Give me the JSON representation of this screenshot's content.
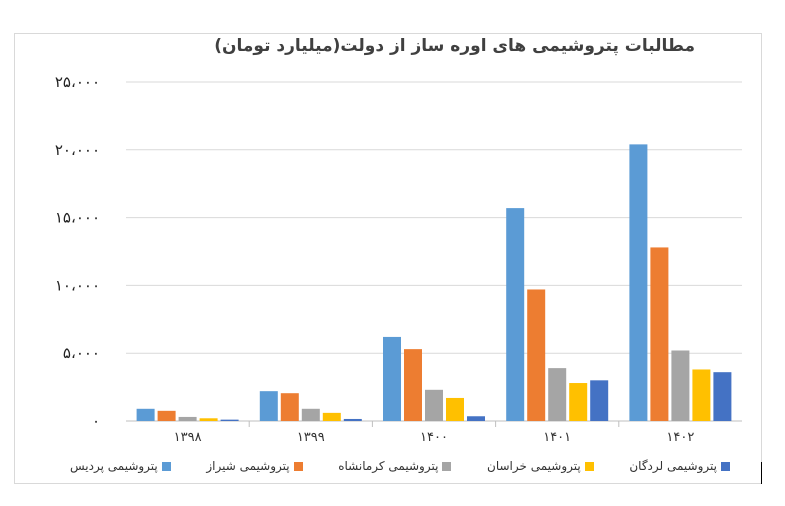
{
  "chart_data": {
    "type": "bar",
    "title": "مطالبات پتروشیمی های اوره ساز از دولت(میلیارد تومان)",
    "categories": [
      "۱۳۹۸",
      "۱۳۹۹",
      "۱۴۰۰",
      "۱۴۰۱",
      "۱۴۰۲"
    ],
    "series": [
      {
        "name": "پتروشیمی پردیس",
        "color": "#5b9bd5",
        "values": [
          900,
          2200,
          6200,
          15700,
          20400
        ]
      },
      {
        "name": "پتروشیمی شیراز",
        "color": "#ed7d31",
        "values": [
          750,
          2050,
          5300,
          9700,
          12800
        ]
      },
      {
        "name": "پتروشیمی کرمانشاه",
        "color": "#a5a5a5",
        "values": [
          300,
          900,
          2300,
          3900,
          5200
        ]
      },
      {
        "name": "پتروشیمی خراسان",
        "color": "#ffc000",
        "values": [
          200,
          600,
          1700,
          2800,
          3800
        ]
      },
      {
        "name": "پتروشیمی لردگان",
        "color": "#4472c4",
        "values": [
          100,
          150,
          350,
          3000,
          3600
        ]
      }
    ],
    "ylim": [
      0,
      25000
    ],
    "yticks": [
      0,
      5000,
      10000,
      15000,
      20000,
      25000
    ],
    "ytick_labels": [
      "۰",
      "۵،۰۰۰",
      "۱۰،۰۰۰",
      "۱۵،۰۰۰",
      "۲۰،۰۰۰",
      "۲۵،۰۰۰"
    ],
    "grid": true,
    "legend_position": "bottom"
  }
}
